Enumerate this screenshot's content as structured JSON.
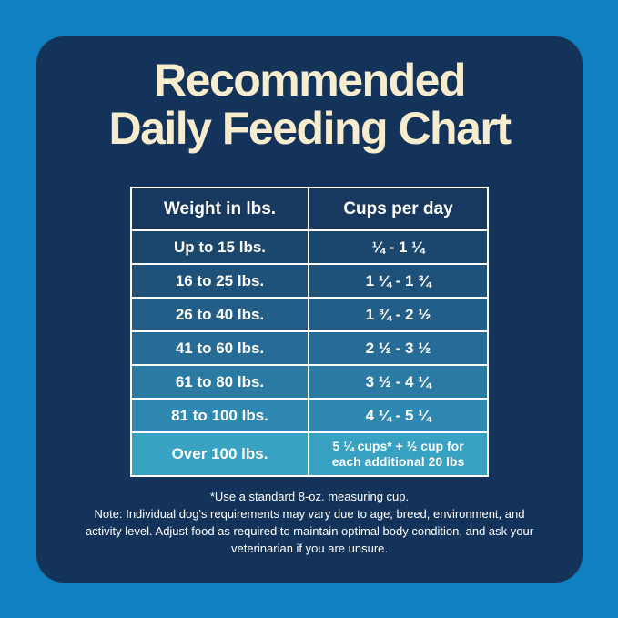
{
  "colors": {
    "background": "#1180C2",
    "card": "#14335A",
    "header_bg": "#17385F",
    "title_text": "#F7EDCE",
    "table_border": "#FFFFFF",
    "cell_text": "#FFFFFF",
    "note_text": "#FFFFFF",
    "row_colors": [
      "#1B476D",
      "#1F527B",
      "#235E89",
      "#276C97",
      "#2B7AA4",
      "#2F88B1",
      "#38A2C3"
    ]
  },
  "title": {
    "line1": "Recommended",
    "line2": "Daily Feeding Chart"
  },
  "footnotes": {
    "measuring_cup": "*Use a standard 8-oz. measuring cup.",
    "note": "Note: Individual dog's requirements may vary due to age, breed, environment, and activity level. Adjust food as required to maintain optimal body condition, and ask your veterinarian if you are unsure."
  },
  "chart_data": {
    "type": "table",
    "title": "Recommended Daily Feeding Chart",
    "columns": [
      "Weight in lbs.",
      "Cups per day"
    ],
    "rows": [
      [
        "Up to 15 lbs.",
        "¼ - 1 ¼"
      ],
      [
        "16 to 25 lbs.",
        "1 ¼ - 1 ¾"
      ],
      [
        "26 to 40 lbs.",
        "1 ¾ - 2 ½"
      ],
      [
        "41 to 60 lbs.",
        "2 ½ - 3 ½"
      ],
      [
        "61 to 80 lbs.",
        "3 ½ - 4 ¼"
      ],
      [
        "81 to 100 lbs.",
        "4 ¼ - 5 ¼"
      ],
      [
        "Over 100 lbs.",
        "5 ¼ cups* + ½ cup for each additional 20 lbs"
      ]
    ]
  }
}
